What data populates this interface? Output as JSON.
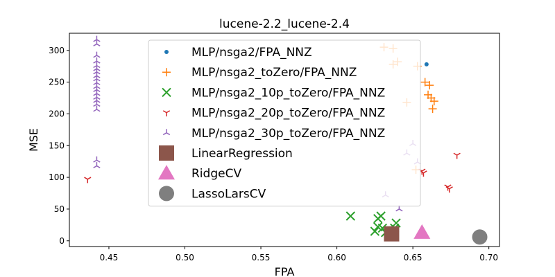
{
  "chart_data": {
    "type": "scatter",
    "title": "lucene-2.2_lucene-2.4",
    "xlabel": "FPA",
    "ylabel": "MSE",
    "xlim": [
      0.424,
      0.707
    ],
    "ylim": [
      -9,
      327
    ],
    "xticks": [
      "0.45",
      "0.50",
      "0.55",
      "0.60",
      "0.65",
      "0.70"
    ],
    "yticks": [
      "0",
      "50",
      "100",
      "150",
      "200",
      "250",
      "300"
    ],
    "grid": false,
    "legend_position": "upper center",
    "series": [
      {
        "name": "MLP/nsga2/FPA_NNZ",
        "marker": "dot",
        "color": "#1f77b4",
        "points": [
          [
            0.659,
            278
          ]
        ]
      },
      {
        "name": "MLP/nsga2_toZero/FPA_NNZ",
        "marker": "plus",
        "color": "#ff7f0e",
        "points": [
          [
            0.631,
            305
          ],
          [
            0.637,
            303
          ],
          [
            0.637,
            278
          ],
          [
            0.64,
            282
          ],
          [
            0.653,
            275
          ],
          [
            0.658,
            250
          ],
          [
            0.661,
            245
          ],
          [
            0.66,
            230
          ],
          [
            0.662,
            225
          ],
          [
            0.664,
            220
          ],
          [
            0.663,
            208
          ],
          [
            0.646,
            218
          ],
          [
            0.652,
            112
          ]
        ]
      },
      {
        "name": "MLP/nsga2_10p_toZero/FPA_NNZ",
        "marker": "x",
        "color": "#2ca02c",
        "points": [
          [
            0.609,
            39
          ],
          [
            0.627,
            35
          ],
          [
            0.629,
            39
          ],
          [
            0.627,
            22
          ],
          [
            0.63,
            20
          ],
          [
            0.625,
            15
          ],
          [
            0.632,
            13
          ],
          [
            0.635,
            8
          ],
          [
            0.639,
            28
          ],
          [
            0.638,
            20
          ]
        ]
      },
      {
        "name": "MLP/nsga2_20p_toZero/FPA_NNZ",
        "marker": "tri_down",
        "color": "#d62728",
        "points": [
          [
            0.436,
            97
          ],
          [
            0.656,
            110
          ],
          [
            0.657,
            107
          ],
          [
            0.679,
            135
          ],
          [
            0.673,
            85
          ],
          [
            0.674,
            82
          ]
        ]
      },
      {
        "name": "MLP/nsga2_30p_toZero/FPA_NNZ",
        "marker": "tri_up",
        "color": "#9467bd",
        "points": [
          [
            0.442,
            317
          ],
          [
            0.442,
            310
          ],
          [
            0.442,
            292
          ],
          [
            0.442,
            283
          ],
          [
            0.442,
            276
          ],
          [
            0.442,
            271
          ],
          [
            0.442,
            266
          ],
          [
            0.442,
            260
          ],
          [
            0.442,
            255
          ],
          [
            0.442,
            249
          ],
          [
            0.442,
            243
          ],
          [
            0.442,
            238
          ],
          [
            0.442,
            232
          ],
          [
            0.442,
            226
          ],
          [
            0.442,
            221
          ],
          [
            0.442,
            215
          ],
          [
            0.442,
            207
          ],
          [
            0.442,
            127
          ],
          [
            0.442,
            118
          ],
          [
            0.632,
            72
          ],
          [
            0.641,
            50
          ],
          [
            0.646,
            138
          ],
          [
            0.65,
            153
          ],
          [
            0.653,
            124
          ]
        ]
      },
      {
        "name": "LinearRegression",
        "marker": "square",
        "color": "#8c564b",
        "points": [
          [
            0.636,
            11
          ]
        ]
      },
      {
        "name": "RidgeCV",
        "marker": "triangle",
        "color": "#e377c2",
        "points": [
          [
            0.656,
            13
          ]
        ]
      },
      {
        "name": "LassoLarsCV",
        "marker": "circle",
        "color": "#7f7f7f",
        "points": [
          [
            0.694,
            6
          ]
        ]
      }
    ]
  }
}
